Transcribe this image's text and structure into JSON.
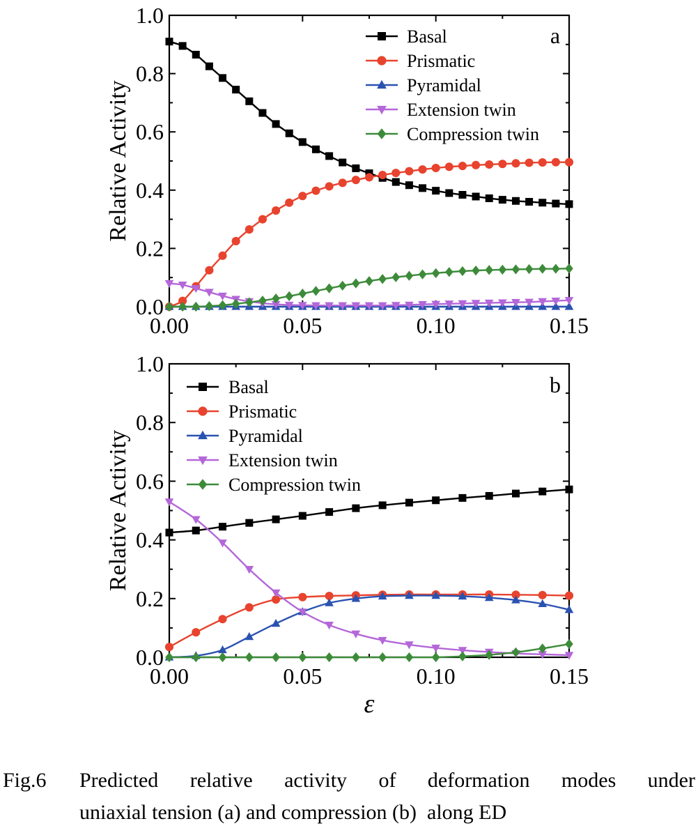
{
  "chart_data": [
    {
      "type": "line",
      "panel_label": "a",
      "ylabel": "Relative Activity",
      "xlabel": "",
      "xlim": [
        0,
        0.15
      ],
      "ylim": [
        0,
        1.0
      ],
      "xticks": [
        "0.00",
        "0.05",
        "0.10",
        "0.15"
      ],
      "yticks": [
        "0.0",
        "0.2",
        "0.4",
        "0.6",
        "0.8",
        "1.0"
      ],
      "legend_position": "top-right",
      "x": [
        0,
        0.005,
        0.01,
        0.015,
        0.02,
        0.025,
        0.03,
        0.035,
        0.04,
        0.045,
        0.05,
        0.055,
        0.06,
        0.065,
        0.07,
        0.075,
        0.08,
        0.085,
        0.09,
        0.095,
        0.1,
        0.105,
        0.11,
        0.115,
        0.12,
        0.125,
        0.13,
        0.135,
        0.14,
        0.145,
        0.15
      ],
      "series": [
        {
          "name": "Basal",
          "color": "#000000",
          "marker": "square",
          "values": [
            0.91,
            0.895,
            0.865,
            0.825,
            0.785,
            0.745,
            0.705,
            0.665,
            0.627,
            0.595,
            0.565,
            0.54,
            0.517,
            0.495,
            0.475,
            0.458,
            0.442,
            0.428,
            0.417,
            0.407,
            0.398,
            0.39,
            0.384,
            0.378,
            0.372,
            0.367,
            0.363,
            0.36,
            0.357,
            0.354,
            0.352
          ]
        },
        {
          "name": "Prismatic",
          "color": "#e8432e",
          "marker": "circle",
          "values": [
            0.0,
            0.02,
            0.07,
            0.125,
            0.175,
            0.225,
            0.265,
            0.3,
            0.33,
            0.357,
            0.38,
            0.398,
            0.413,
            0.425,
            0.435,
            0.444,
            0.452,
            0.459,
            0.465,
            0.471,
            0.476,
            0.48,
            0.483,
            0.486,
            0.488,
            0.49,
            0.492,
            0.494,
            0.495,
            0.496,
            0.496
          ]
        },
        {
          "name": "Pyramidal",
          "color": "#2a52b0",
          "marker": "triangle-up",
          "values": [
            0,
            0,
            0,
            0,
            0,
            0,
            0,
            0,
            0,
            0,
            0,
            0,
            0,
            0,
            0,
            0,
            0,
            0,
            0,
            0,
            0,
            0,
            0,
            0,
            0,
            0,
            0,
            0,
            0,
            0,
            0
          ]
        },
        {
          "name": "Extension twin",
          "color": "#b467d8",
          "marker": "triangle-down",
          "values": [
            0.08,
            0.075,
            0.063,
            0.05,
            0.037,
            0.026,
            0.018,
            0.012,
            0.008,
            0.006,
            0.005,
            0.004,
            0.004,
            0.004,
            0.004,
            0.004,
            0.004,
            0.005,
            0.006,
            0.008,
            0.009,
            0.01,
            0.011,
            0.012,
            0.013,
            0.014,
            0.015,
            0.016,
            0.018,
            0.02,
            0.022
          ]
        },
        {
          "name": "Compression twin",
          "color": "#3d8b3a",
          "marker": "diamond",
          "values": [
            0.0,
            0.0,
            0.0,
            0.002,
            0.005,
            0.01,
            0.015,
            0.021,
            0.028,
            0.036,
            0.045,
            0.054,
            0.063,
            0.072,
            0.08,
            0.088,
            0.095,
            0.101,
            0.106,
            0.111,
            0.115,
            0.119,
            0.122,
            0.124,
            0.126,
            0.127,
            0.128,
            0.129,
            0.13,
            0.13,
            0.131
          ]
        }
      ]
    },
    {
      "type": "line",
      "panel_label": "b",
      "ylabel": "Relative Activity",
      "xlabel": "ε",
      "xlim": [
        0,
        0.15
      ],
      "ylim": [
        0,
        1.0
      ],
      "xticks": [
        "0.00",
        "0.05",
        "0.10",
        "0.15"
      ],
      "yticks": [
        "0.0",
        "0.2",
        "0.4",
        "0.6",
        "0.8",
        "1.0"
      ],
      "legend_position": "top-left",
      "x": [
        0,
        0.01,
        0.02,
        0.03,
        0.04,
        0.05,
        0.06,
        0.07,
        0.08,
        0.09,
        0.1,
        0.11,
        0.12,
        0.13,
        0.14,
        0.15
      ],
      "series": [
        {
          "name": "Basal",
          "color": "#000000",
          "marker": "square",
          "values": [
            0.425,
            0.432,
            0.445,
            0.458,
            0.47,
            0.482,
            0.495,
            0.508,
            0.518,
            0.527,
            0.535,
            0.543,
            0.55,
            0.558,
            0.565,
            0.572
          ]
        },
        {
          "name": "Prismatic",
          "color": "#e8432e",
          "marker": "circle",
          "values": [
            0.035,
            0.085,
            0.13,
            0.17,
            0.197,
            0.205,
            0.209,
            0.211,
            0.213,
            0.214,
            0.214,
            0.214,
            0.214,
            0.213,
            0.212,
            0.21
          ]
        },
        {
          "name": "Pyramidal",
          "color": "#2a52b0",
          "marker": "triangle-up",
          "values": [
            0.0,
            0.005,
            0.025,
            0.07,
            0.115,
            0.155,
            0.185,
            0.2,
            0.208,
            0.21,
            0.21,
            0.208,
            0.203,
            0.195,
            0.182,
            0.162
          ]
        },
        {
          "name": "Extension twin",
          "color": "#b467d8",
          "marker": "triangle-down",
          "values": [
            0.53,
            0.47,
            0.39,
            0.3,
            0.22,
            0.155,
            0.11,
            0.08,
            0.058,
            0.043,
            0.032,
            0.024,
            0.018,
            0.013,
            0.01,
            0.007
          ]
        },
        {
          "name": "Compression twin",
          "color": "#3d8b3a",
          "marker": "diamond",
          "values": [
            0,
            0,
            0,
            0,
            0,
            0,
            0,
            0,
            0,
            0,
            0,
            0.003,
            0.008,
            0.017,
            0.03,
            0.045
          ]
        }
      ]
    }
  ],
  "caption": {
    "number": "Fig.6",
    "line1": "Predicted relative activity of deformation modes under",
    "line2": "uniaxial tension (a) and compression (b)  along ED"
  }
}
